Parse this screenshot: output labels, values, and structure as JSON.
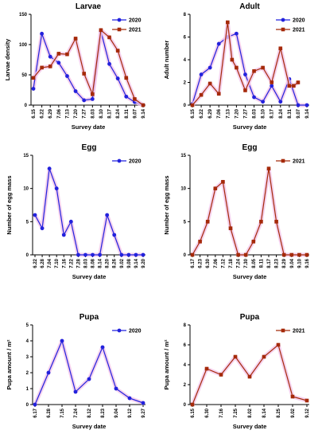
{
  "colors": {
    "blue": "#2222dd",
    "red": "#a52a0a",
    "halo": "#f3c6ea"
  },
  "chart_data": [
    {
      "type": "line",
      "title": "Larvae",
      "xlabel": "Survey date",
      "ylabel": "Larvae density",
      "x": [
        "6.15",
        "6.22",
        "6.29",
        "7.06",
        "7.13",
        "7.20",
        "7.27",
        "8.03",
        "8.10",
        "8.17",
        "8.24",
        "8.31",
        "9.07",
        "9.14"
      ],
      "ylim": [
        0,
        150
      ],
      "yticks": [
        "0",
        "50",
        "100",
        "150"
      ],
      "legend": "top-right",
      "series": [
        {
          "name": "2020",
          "color": "blue",
          "marker": "circle",
          "points": [
            [
              0,
              27
            ],
            [
              1,
              118
            ],
            [
              2,
              80
            ],
            [
              3,
              70
            ],
            [
              4,
              48
            ],
            [
              5,
              23
            ],
            [
              6,
              8
            ],
            [
              7,
              10
            ],
            [
              8,
              122
            ],
            [
              9,
              68
            ],
            [
              10,
              44
            ],
            [
              11,
              14
            ],
            [
              12,
              5
            ],
            [
              13,
              0
            ]
          ]
        },
        {
          "name": "2021",
          "color": "red",
          "marker": "square",
          "points": [
            [
              0,
              45
            ],
            [
              1,
              62
            ],
            [
              2,
              64
            ],
            [
              3,
              85
            ],
            [
              4,
              84
            ],
            [
              5,
              110
            ],
            [
              6,
              52
            ],
            [
              7,
              18
            ],
            [
              8,
              124
            ],
            [
              9,
              112
            ],
            [
              10,
              90
            ],
            [
              11,
              45
            ],
            [
              12,
              10
            ],
            [
              13,
              0
            ]
          ]
        }
      ]
    },
    {
      "type": "line",
      "title": "Adult",
      "xlabel": "Survey date",
      "ylabel": "Adult number",
      "x": [
        "6.15",
        "6.22",
        "6.29",
        "7.06",
        "7.13",
        "7.20",
        "7.27",
        "8.03",
        "8.10",
        "8.17",
        "8.24",
        "8.31",
        "9.07",
        "9.14"
      ],
      "ylim": [
        0,
        8
      ],
      "yticks": [
        "0",
        "2",
        "4",
        "6",
        "8"
      ],
      "legend": "top-right",
      "series": [
        {
          "name": "2020",
          "color": "blue",
          "marker": "circle",
          "points": [
            [
              0,
              0.1
            ],
            [
              1,
              2.7
            ],
            [
              2,
              3.3
            ],
            [
              3,
              5.4
            ],
            [
              4,
              6.0
            ],
            [
              5,
              6.3
            ],
            [
              6,
              2.7
            ],
            [
              7,
              0.7
            ],
            [
              8,
              0.3
            ],
            [
              9,
              1.7
            ],
            [
              10,
              0.3
            ],
            [
              11,
              2.3
            ],
            [
              12,
              0
            ],
            [
              13,
              0
            ]
          ]
        },
        {
          "name": "2021",
          "color": "red",
          "marker": "square",
          "points": [
            [
              0,
              0
            ],
            [
              1,
              0.9
            ],
            [
              2,
              1.9
            ],
            [
              3,
              1.0
            ],
            [
              4,
              7.3
            ],
            [
              4.5,
              4.0
            ],
            [
              5,
              3.3
            ],
            [
              6,
              1.3
            ],
            [
              7,
              3.0
            ],
            [
              8,
              3.3
            ],
            [
              9,
              2.0
            ],
            [
              10,
              5.0
            ],
            [
              11,
              1.7
            ],
            [
              11.5,
              1.7
            ],
            [
              12,
              2.0
            ]
          ]
        }
      ]
    },
    {
      "type": "line",
      "title": "Egg",
      "xlabel": "Survey date",
      "ylabel": "Number of egg mass",
      "x": [
        "6.22",
        "6.28",
        "7.04",
        "7.10",
        "7.16",
        "7.22",
        "7.28",
        "8.03",
        "8.08",
        "8.14",
        "8.20",
        "8.26",
        "9.02",
        "9.08",
        "9.14",
        "9.20"
      ],
      "ylim": [
        0,
        15
      ],
      "yticks": [
        "0",
        "5",
        "10",
        "15"
      ],
      "legend": "top-right",
      "series": [
        {
          "name": "2020",
          "color": "blue",
          "marker": "circle",
          "points": [
            [
              0,
              6
            ],
            [
              1,
              4
            ],
            [
              2,
              13
            ],
            [
              3,
              10
            ],
            [
              4,
              3
            ],
            [
              5,
              5
            ],
            [
              6,
              0
            ],
            [
              7,
              0
            ],
            [
              8,
              0
            ],
            [
              9,
              0
            ],
            [
              10,
              6
            ],
            [
              11,
              3
            ],
            [
              12,
              0
            ],
            [
              13,
              0
            ],
            [
              14,
              0
            ],
            [
              15,
              0
            ]
          ]
        }
      ]
    },
    {
      "type": "line",
      "title": "Egg",
      "xlabel": "Survey date",
      "ylabel": "Number of egg mass",
      "x": [
        "6.17",
        "6.23",
        "6.30",
        "7.06",
        "7.12",
        "7.18",
        "7.24",
        "7.30",
        "8.05",
        "8.11",
        "8.17",
        "8.23",
        "8.29",
        "9.04",
        "9.10",
        "9.16"
      ],
      "ylim": [
        0,
        15
      ],
      "yticks": [
        "0",
        "5",
        "10",
        "15"
      ],
      "legend": "top-right",
      "series": [
        {
          "name": "2021",
          "color": "red",
          "marker": "square",
          "points": [
            [
              0,
              0
            ],
            [
              1,
              2
            ],
            [
              2,
              5
            ],
            [
              3,
              10
            ],
            [
              4,
              11
            ],
            [
              5,
              4
            ],
            [
              6,
              0
            ],
            [
              7,
              0
            ],
            [
              8,
              2
            ],
            [
              9,
              5
            ],
            [
              10,
              13
            ],
            [
              11,
              5
            ],
            [
              12,
              0
            ],
            [
              13,
              0
            ],
            [
              14,
              0
            ],
            [
              15,
              0
            ]
          ]
        }
      ]
    },
    {
      "type": "line",
      "title": "Pupa",
      "xlabel": "Survey date",
      "ylabel": "Pupa amount / m²",
      "x": [
        "6.17",
        "6.28",
        "7.15",
        "7.24",
        "8.12",
        "8.23",
        "9.04",
        "9.12",
        "9.27"
      ],
      "ylim": [
        0,
        5
      ],
      "yticks": [
        "0",
        "1",
        "2",
        "3",
        "4",
        "5"
      ],
      "legend": "top-right",
      "series": [
        {
          "name": "2020",
          "color": "blue",
          "marker": "circle",
          "points": [
            [
              0,
              0
            ],
            [
              1,
              2
            ],
            [
              2,
              4
            ],
            [
              3,
              0.8
            ],
            [
              4,
              1.6
            ],
            [
              5,
              3.6
            ],
            [
              6,
              1.0
            ],
            [
              7,
              0.4
            ],
            [
              8,
              0.1
            ]
          ]
        }
      ]
    },
    {
      "type": "line",
      "title": "Pupa",
      "xlabel": "Survey date",
      "ylabel": "Pupa amount / m²",
      "x": [
        "6.15",
        "6.30",
        "7.16",
        "7.25",
        "8.02",
        "8.14",
        "8.25",
        "9.02",
        "9.12"
      ],
      "ylim": [
        0,
        8
      ],
      "yticks": [
        "0",
        "2",
        "4",
        "6",
        "8"
      ],
      "legend": "top-right",
      "series": [
        {
          "name": "2021",
          "color": "red",
          "marker": "square",
          "points": [
            [
              0,
              0
            ],
            [
              1,
              3.6
            ],
            [
              2,
              3.0
            ],
            [
              3,
              4.8
            ],
            [
              4,
              2.8
            ],
            [
              5,
              4.8
            ],
            [
              6,
              6.0
            ],
            [
              7,
              0.8
            ],
            [
              8,
              0.4
            ]
          ]
        }
      ]
    }
  ]
}
